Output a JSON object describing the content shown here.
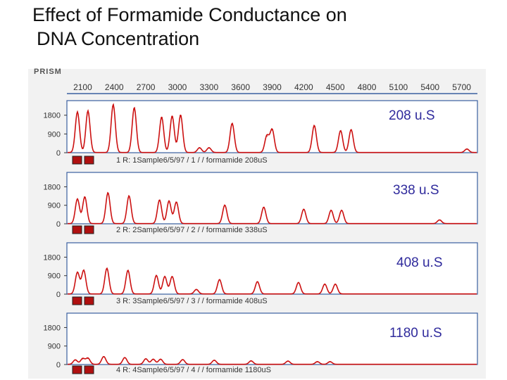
{
  "title_line1": "Effect of Formamide Conductance on",
  "title_line2": "DNA Concentration",
  "prism_label": "PRISM",
  "peak_color": "#cc1111",
  "annotation_color": "#2f2a9c",
  "chart_data": {
    "type": "line",
    "x_ticks": [
      2100,
      2400,
      2700,
      3000,
      3300,
      3600,
      3900,
      4200,
      4500,
      4800,
      5100,
      5400,
      5700
    ],
    "xlim": [
      1950,
      5850
    ],
    "y_ticks": [
      0,
      900,
      1800
    ],
    "ylim": [
      0,
      2500
    ],
    "panels": [
      {
        "annotation": "208 u.S",
        "lane_label": "1 R: 1Sample6/5/97 / 1 / / formamide 208uS",
        "peaks": [
          [
            2050,
            1950
          ],
          [
            2150,
            2000
          ],
          [
            2390,
            2300
          ],
          [
            2590,
            2150
          ],
          [
            2850,
            1700
          ],
          [
            2950,
            1750
          ],
          [
            3030,
            1800
          ],
          [
            3210,
            230
          ],
          [
            3300,
            230
          ],
          [
            3520,
            1400
          ],
          [
            3850,
            800
          ],
          [
            3900,
            1100
          ],
          [
            4300,
            1300
          ],
          [
            4550,
            1050
          ],
          [
            4650,
            1100
          ],
          [
            5750,
            170
          ]
        ]
      },
      {
        "annotation": "338 u.S",
        "lane_label": "2 R: 2Sample6/5/97 / 2 / / formamide 338uS",
        "peaks": [
          [
            2050,
            1200
          ],
          [
            2120,
            1300
          ],
          [
            2340,
            1500
          ],
          [
            2540,
            1350
          ],
          [
            2830,
            1150
          ],
          [
            2920,
            1100
          ],
          [
            2990,
            1050
          ],
          [
            3450,
            900
          ],
          [
            3820,
            800
          ],
          [
            4200,
            700
          ],
          [
            4460,
            650
          ],
          [
            4560,
            650
          ],
          [
            5490,
            180
          ]
        ]
      },
      {
        "annotation": "408 u.S",
        "lane_label": "3 R: 3Sample6/5/97 / 3 / / formamide 408uS",
        "peaks": [
          [
            2050,
            1050
          ],
          [
            2110,
            1150
          ],
          [
            2330,
            1250
          ],
          [
            2530,
            1150
          ],
          [
            2800,
            900
          ],
          [
            2880,
            850
          ],
          [
            2950,
            850
          ],
          [
            3180,
            220
          ],
          [
            3400,
            700
          ],
          [
            3760,
            600
          ],
          [
            4150,
            560
          ],
          [
            4400,
            480
          ],
          [
            4500,
            480
          ]
        ]
      },
      {
        "annotation": "1180 u.S",
        "lane_label": "4 R: 4Sample6/5/97 / 4 / / formamide 1180uS",
        "peaks": [
          [
            2030,
            220
          ],
          [
            2100,
            280
          ],
          [
            2150,
            300
          ],
          [
            2300,
            380
          ],
          [
            2500,
            330
          ],
          [
            2700,
            270
          ],
          [
            2770,
            250
          ],
          [
            2840,
            250
          ],
          [
            3050,
            230
          ],
          [
            3350,
            200
          ],
          [
            3700,
            170
          ],
          [
            4050,
            160
          ],
          [
            4330,
            130
          ],
          [
            4450,
            130
          ]
        ]
      }
    ]
  }
}
